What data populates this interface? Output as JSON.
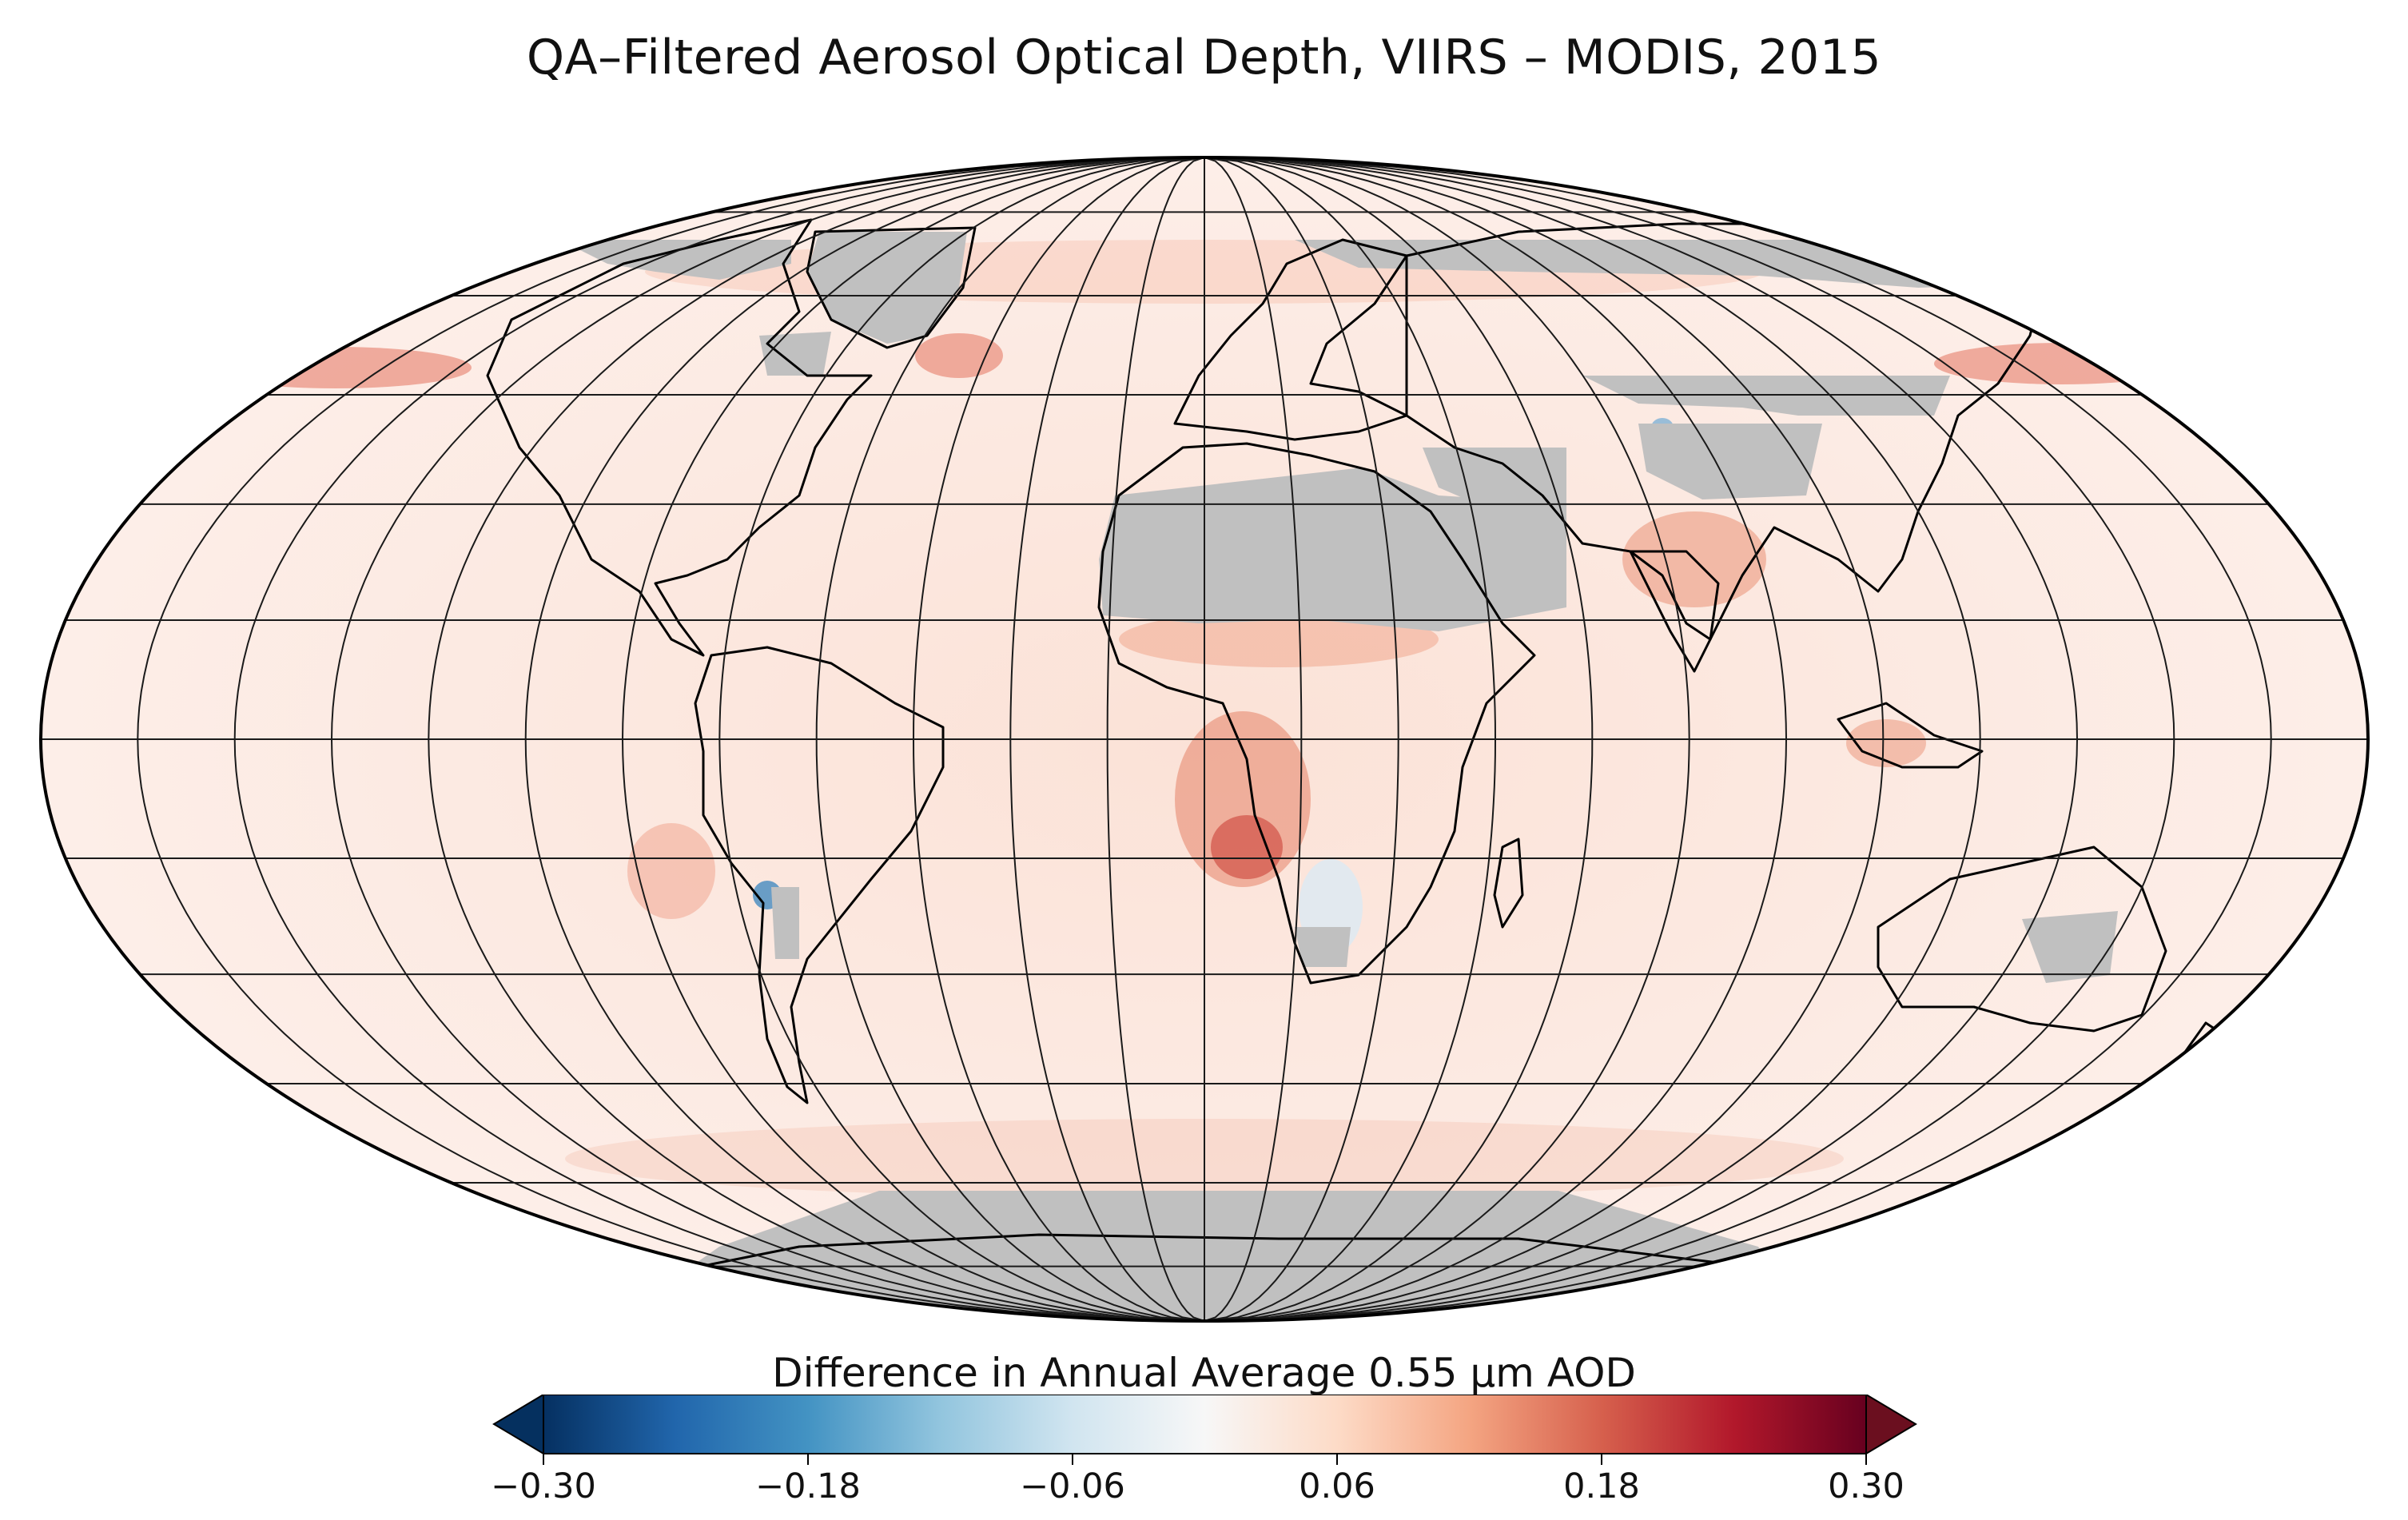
{
  "title": "QA–Filtered Aerosol Optical Depth, VIIRS – MODIS, 2015",
  "projection": "Mollweide",
  "colors": {
    "no_data": "#c0c0c0",
    "coastline": "#000000",
    "graticule": "#1a1a1a",
    "ocean_base": "#fce8e0",
    "land_base": "#fbe1d6"
  },
  "colorbar": {
    "label": "Difference in Annual Average 0.55 µm AOD",
    "ticks": [
      "−0.30",
      "−0.18",
      "−0.06",
      "0.06",
      "0.18",
      "0.30"
    ],
    "range": [
      -0.3,
      0.3
    ],
    "extend": "both",
    "stops": [
      "#053061",
      "#2166ac",
      "#4393c3",
      "#92c5de",
      "#d1e5f0",
      "#f7f7f7",
      "#fddbc7",
      "#f4a582",
      "#d6604d",
      "#b2182b",
      "#67001f"
    ],
    "under_color": "#05305f",
    "over_color": "#6b0f1f"
  },
  "graticule": {
    "meridian_spacing_deg": 15,
    "parallel_spacing_deg": 15
  }
}
